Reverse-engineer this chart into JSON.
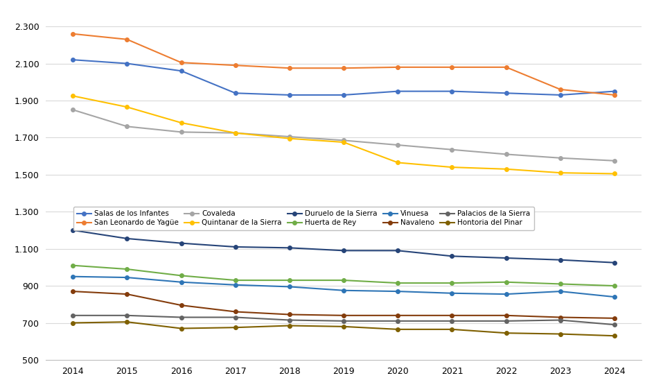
{
  "years": [
    2014,
    2015,
    2016,
    2017,
    2018,
    2019,
    2020,
    2021,
    2022,
    2023,
    2024
  ],
  "series": [
    {
      "name": "Salas de los Infantes",
      "color": "#4472C4",
      "values": [
        2120,
        2100,
        2060,
        1940,
        1930,
        1930,
        1950,
        1950,
        1940,
        1930,
        1950
      ]
    },
    {
      "name": "San Leonardo de Yagüe",
      "color": "#ED7D31",
      "values": [
        2260,
        2230,
        2105,
        2090,
        2075,
        2075,
        2080,
        2080,
        2080,
        1960,
        1930
      ]
    },
    {
      "name": "Covaleda",
      "color": "#A5A5A5",
      "values": [
        1850,
        1760,
        1730,
        1725,
        1705,
        1685,
        1660,
        1635,
        1610,
        1590,
        1575
      ]
    },
    {
      "name": "Quintanar de la Sierra",
      "color": "#FFC000",
      "values": [
        1925,
        1865,
        1780,
        1725,
        1695,
        1675,
        1565,
        1540,
        1530,
        1510,
        1505
      ]
    },
    {
      "name": "Duruelo de la Sierra",
      "color": "#264478",
      "values": [
        1200,
        1155,
        1130,
        1110,
        1105,
        1090,
        1090,
        1060,
        1050,
        1040,
        1025
      ]
    },
    {
      "name": "Huerta de Rey",
      "color": "#70AD47",
      "values": [
        1010,
        990,
        955,
        930,
        930,
        930,
        915,
        915,
        920,
        910,
        900
      ]
    },
    {
      "name": "Vinuesa",
      "color": "#2E75B6",
      "values": [
        950,
        945,
        920,
        905,
        895,
        875,
        870,
        860,
        855,
        870,
        840
      ]
    },
    {
      "name": "Navaleno",
      "color": "#843C0C",
      "values": [
        870,
        855,
        795,
        760,
        745,
        740,
        740,
        740,
        740,
        730,
        725
      ]
    },
    {
      "name": "Palacios de la Sierra",
      "color": "#636363",
      "values": [
        740,
        740,
        730,
        730,
        715,
        710,
        710,
        710,
        710,
        715,
        690
      ]
    },
    {
      "name": "Hontoria del Pinar",
      "color": "#7F6000",
      "values": [
        700,
        705,
        670,
        675,
        685,
        680,
        665,
        665,
        645,
        640,
        630
      ]
    }
  ],
  "ylim": [
    500,
    2380
  ],
  "yticks": [
    500,
    700,
    900,
    1100,
    1300,
    1500,
    1700,
    1900,
    2100,
    2300
  ],
  "background_color": "#FFFFFF",
  "grid_color": "#D9D9D9",
  "legend_fontsize": 7.5,
  "tick_fontsize": 9,
  "legend_ncol": 5,
  "legend_order": [
    0,
    1,
    2,
    3,
    4,
    5,
    6,
    7,
    8,
    9
  ]
}
